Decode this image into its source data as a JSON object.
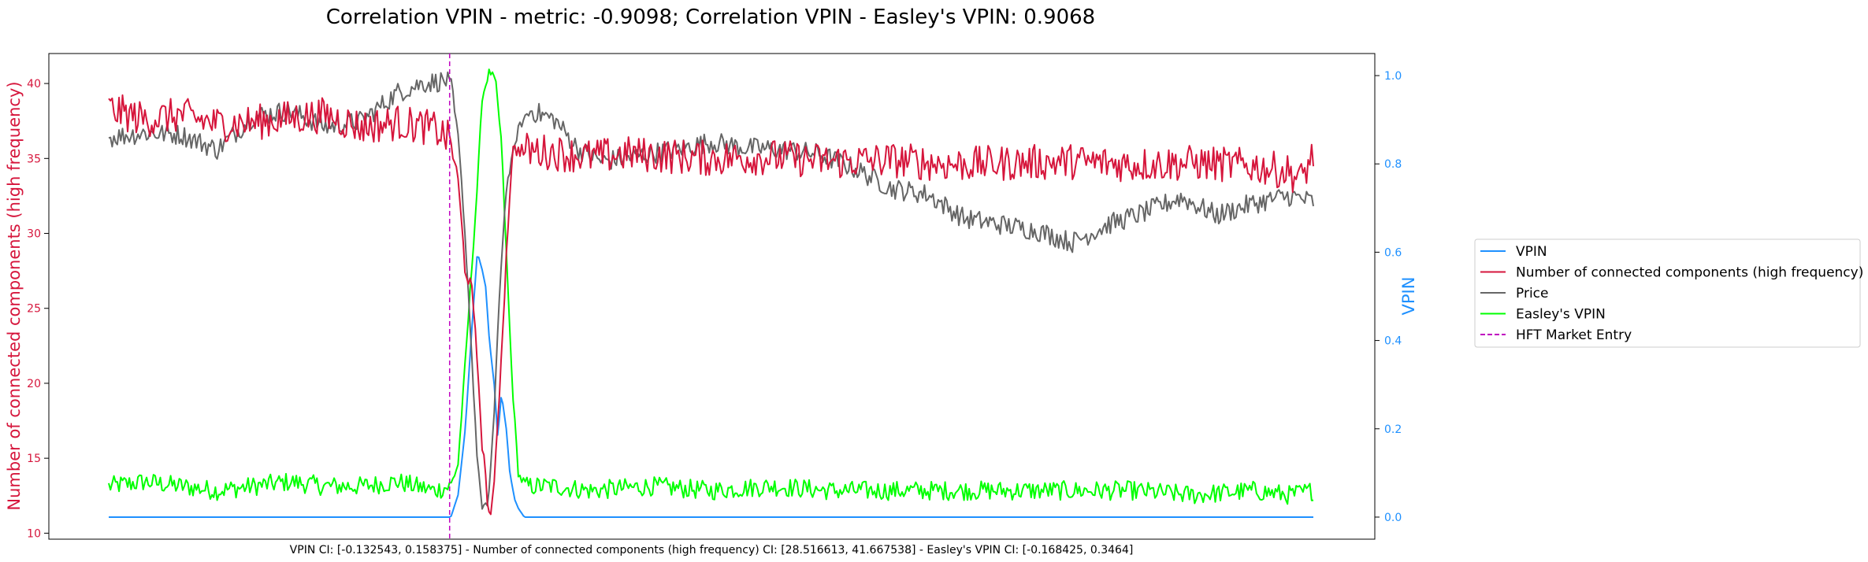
{
  "chart_data": {
    "type": "line",
    "title": "Correlation VPIN - metric: -0.9098; Correlation VPIN - Easley's VPIN: 0.9068",
    "caption": "VPIN CI: [-0.132543, 0.158375] - Number of connected components (high frequency) CI: [28.516613, 41.667538] - Easley's VPIN CI: [-0.168425, 0.3464]",
    "xlabel": "",
    "left_axis": {
      "label": "Number of connected components (high frequency)",
      "color": "#d6163c",
      "ylim": [
        9.6,
        42
      ],
      "ticks": [
        10,
        15,
        20,
        25,
        30,
        35,
        40
      ]
    },
    "right_axis": {
      "label": "VPIN",
      "color": "#1e90ff",
      "ylim": [
        -0.05,
        1.05
      ],
      "ticks": [
        0.0,
        0.2,
        0.4,
        0.6,
        0.8,
        1.0
      ],
      "tick_labels": [
        "0.0",
        "0.2",
        "0.4",
        "0.6",
        "0.8",
        "1.0"
      ]
    },
    "x_range": [
      0,
      100
    ],
    "marker_x": 28.3,
    "grid": false,
    "legend_position": "right",
    "series": [
      {
        "name": "VPIN",
        "axis": "right",
        "color": "#1e90ff",
        "style": "solid",
        "points": [
          [
            0,
            0.0
          ],
          [
            28.4,
            0.0
          ],
          [
            29,
            0.05
          ],
          [
            29.6,
            0.2
          ],
          [
            30.2,
            0.45
          ],
          [
            30.6,
            0.6
          ],
          [
            31,
            0.56
          ],
          [
            31.3,
            0.52
          ],
          [
            31.6,
            0.4
          ],
          [
            32,
            0.3
          ],
          [
            32.3,
            0.18
          ],
          [
            32.6,
            0.28
          ],
          [
            33,
            0.2
          ],
          [
            33.3,
            0.1
          ],
          [
            33.7,
            0.04
          ],
          [
            34,
            0.02
          ],
          [
            34.5,
            0.0
          ],
          [
            100,
            0.0
          ]
        ]
      },
      {
        "name": "Number of connected components (high frequency)",
        "axis": "left",
        "color": "#d6163c",
        "style": "solid",
        "points": [
          [
            0,
            38.3
          ],
          [
            3,
            37.6
          ],
          [
            6,
            37.9
          ],
          [
            9,
            37.3
          ],
          [
            12,
            37.4
          ],
          [
            15,
            37.7
          ],
          [
            18,
            37.9
          ],
          [
            21,
            37.1
          ],
          [
            24,
            37.4
          ],
          [
            27,
            37.0
          ],
          [
            28.4,
            36.2
          ],
          [
            29,
            33.5
          ],
          [
            29.6,
            27.5
          ],
          [
            30.1,
            26.5
          ],
          [
            30.6,
            21.5
          ],
          [
            31,
            16
          ],
          [
            31.6,
            11
          ],
          [
            32,
            13
          ],
          [
            32.6,
            22
          ],
          [
            33.1,
            30
          ],
          [
            33.5,
            35.5
          ],
          [
            34,
            35.6
          ],
          [
            37,
            35.4
          ],
          [
            40,
            35.1
          ],
          [
            43,
            35.3
          ],
          [
            46,
            35.2
          ],
          [
            50,
            35.0
          ],
          [
            55,
            35.1
          ],
          [
            60,
            34.8
          ],
          [
            65,
            34.9
          ],
          [
            70,
            34.6
          ],
          [
            75,
            34.7
          ],
          [
            80,
            34.8
          ],
          [
            85,
            34.6
          ],
          [
            90,
            34.7
          ],
          [
            95,
            34.5
          ],
          [
            98,
            34.1
          ],
          [
            99,
            33.6
          ],
          [
            100,
            35.3
          ]
        ]
      },
      {
        "name": "Price",
        "axis": "left",
        "color": "#666666",
        "style": "solid",
        "points": [
          [
            0,
            36.4
          ],
          [
            3,
            36.7
          ],
          [
            6,
            36.6
          ],
          [
            9,
            35.6
          ],
          [
            12,
            37.8
          ],
          [
            15,
            38.2
          ],
          [
            18,
            37.1
          ],
          [
            21,
            37.5
          ],
          [
            24,
            39.4
          ],
          [
            26,
            40.0
          ],
          [
            28,
            40.2
          ],
          [
            28.4,
            39.8
          ],
          [
            29,
            36.5
          ],
          [
            29.5,
            31
          ],
          [
            30,
            24
          ],
          [
            30.5,
            16
          ],
          [
            31,
            11.5
          ],
          [
            31.5,
            12
          ],
          [
            32,
            18
          ],
          [
            32.5,
            27
          ],
          [
            33,
            33
          ],
          [
            34,
            37
          ],
          [
            35,
            38.2
          ],
          [
            37,
            37.6
          ],
          [
            39,
            35.6
          ],
          [
            41,
            34.8
          ],
          [
            44,
            35.2
          ],
          [
            47,
            35.6
          ],
          [
            50,
            36.1
          ],
          [
            53,
            35.7
          ],
          [
            56,
            35.6
          ],
          [
            59,
            35.3
          ],
          [
            62,
            34.3
          ],
          [
            65,
            33.0
          ],
          [
            68,
            32.6
          ],
          [
            71,
            31.0
          ],
          [
            74,
            30.6
          ],
          [
            77,
            30.2
          ],
          [
            80,
            29.4
          ],
          [
            83,
            30.6
          ],
          [
            86,
            31.4
          ],
          [
            89,
            32.4
          ],
          [
            92,
            31.2
          ],
          [
            95,
            32.0
          ],
          [
            98,
            32.5
          ],
          [
            100,
            32.1
          ]
        ]
      },
      {
        "name": "Easley's VPIN",
        "axis": "right",
        "color": "#00ff00",
        "style": "solid",
        "points": [
          [
            0,
            0.07
          ],
          [
            3,
            0.08
          ],
          [
            6,
            0.07
          ],
          [
            9,
            0.06
          ],
          [
            12,
            0.07
          ],
          [
            15,
            0.08
          ],
          [
            18,
            0.07
          ],
          [
            21,
            0.07
          ],
          [
            24,
            0.08
          ],
          [
            27,
            0.06
          ],
          [
            28.4,
            0.07
          ],
          [
            29,
            0.12
          ],
          [
            29.6,
            0.35
          ],
          [
            30.1,
            0.55
          ],
          [
            30.6,
            0.75
          ],
          [
            31,
            0.95
          ],
          [
            31.6,
            1.01
          ],
          [
            32.1,
            0.99
          ],
          [
            32.6,
            0.85
          ],
          [
            33,
            0.6
          ],
          [
            33.5,
            0.3
          ],
          [
            34,
            0.1
          ],
          [
            34.5,
            0.07
          ],
          [
            37,
            0.07
          ],
          [
            40,
            0.06
          ],
          [
            45,
            0.07
          ],
          [
            50,
            0.06
          ],
          [
            55,
            0.07
          ],
          [
            60,
            0.06
          ],
          [
            65,
            0.06
          ],
          [
            70,
            0.06
          ],
          [
            75,
            0.06
          ],
          [
            80,
            0.06
          ],
          [
            85,
            0.06
          ],
          [
            90,
            0.05
          ],
          [
            95,
            0.06
          ],
          [
            98,
            0.05
          ],
          [
            100,
            0.06
          ]
        ]
      },
      {
        "name": "HFT Market Entry",
        "axis": "left",
        "color": "#c000c0",
        "style": "dashed",
        "points": []
      }
    ]
  }
}
